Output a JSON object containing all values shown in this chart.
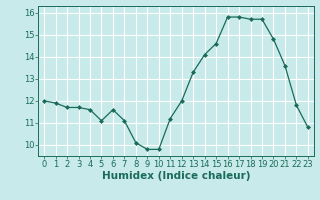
{
  "x": [
    0,
    1,
    2,
    3,
    4,
    5,
    6,
    7,
    8,
    9,
    10,
    11,
    12,
    13,
    14,
    15,
    16,
    17,
    18,
    19,
    20,
    21,
    22,
    23
  ],
  "y": [
    12.0,
    11.9,
    11.7,
    11.7,
    11.6,
    11.1,
    11.6,
    11.1,
    10.1,
    9.8,
    9.8,
    11.2,
    12.0,
    13.3,
    14.1,
    14.6,
    15.8,
    15.8,
    15.7,
    15.7,
    14.8,
    13.6,
    11.8,
    10.8
  ],
  "xlim": [
    -0.5,
    23.5
  ],
  "ylim": [
    9.5,
    16.3
  ],
  "yticks": [
    10,
    11,
    12,
    13,
    14,
    15,
    16
  ],
  "xticks": [
    0,
    1,
    2,
    3,
    4,
    5,
    6,
    7,
    8,
    9,
    10,
    11,
    12,
    13,
    14,
    15,
    16,
    17,
    18,
    19,
    20,
    21,
    22,
    23
  ],
  "xlabel": "Humidex (Indice chaleur)",
  "line_color": "#1a6b5a",
  "marker": "D",
  "marker_size": 2.0,
  "bg_color": "#c8eaea",
  "grid_color": "#ffffff",
  "tick_color": "#1a6b5a",
  "label_color": "#1a6b5a",
  "xlabel_fontsize": 7.5,
  "tick_fontsize": 6.0,
  "linewidth": 0.9
}
